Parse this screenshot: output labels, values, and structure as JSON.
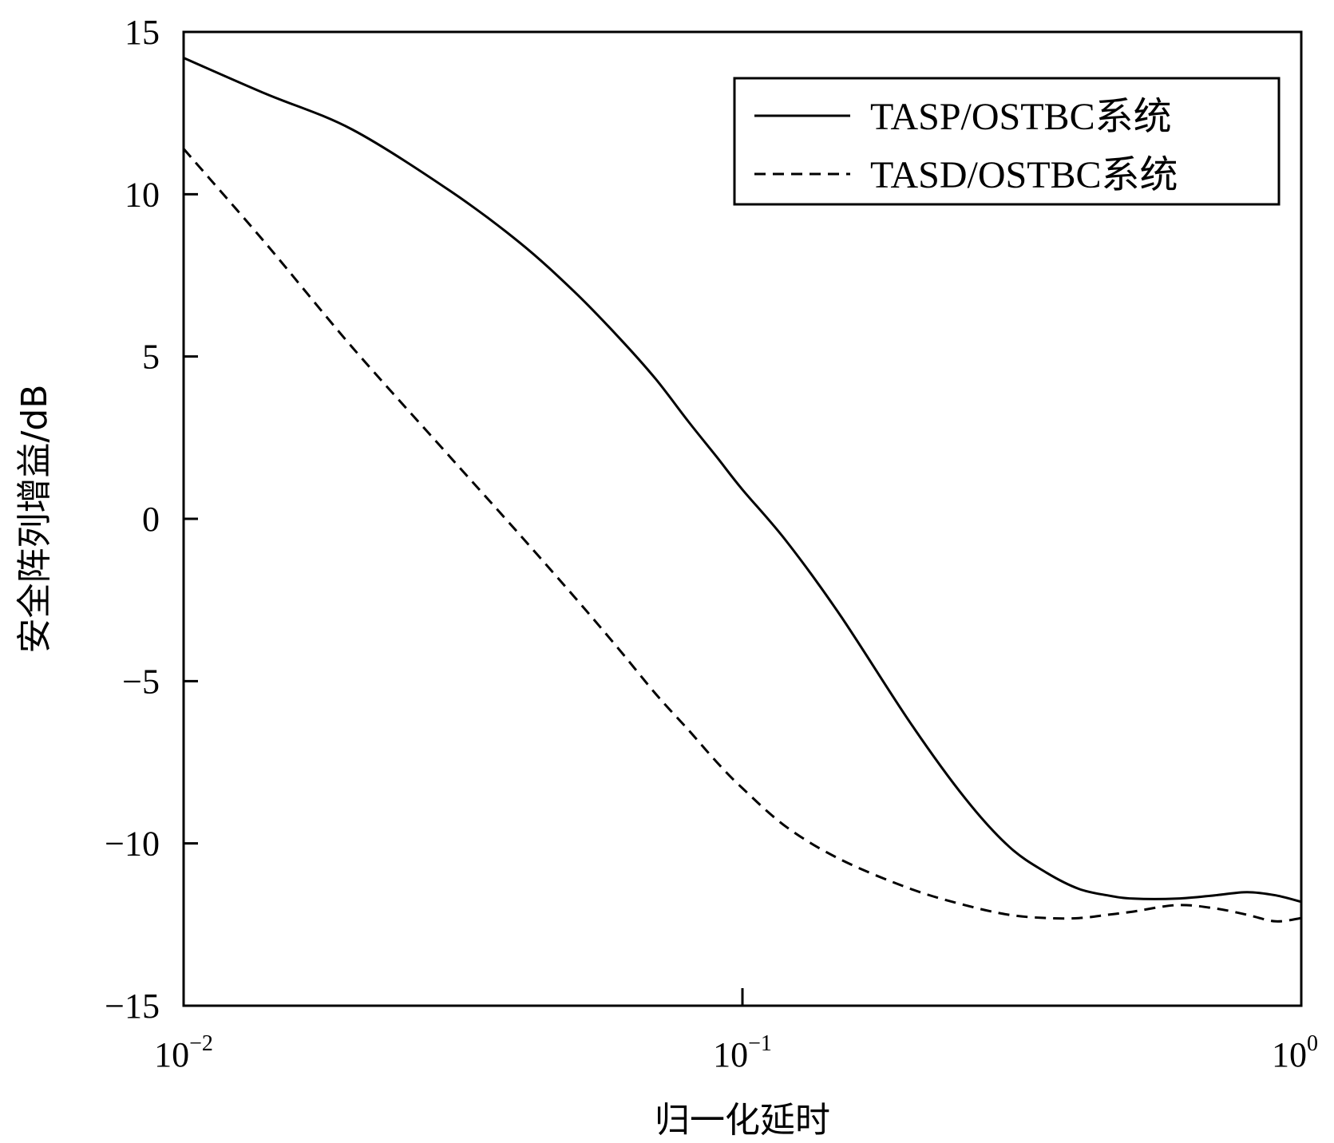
{
  "chart_data": {
    "type": "line",
    "xlabel": "归一化延时",
    "ylabel": "安全阵列增益/dB",
    "xscale": "log",
    "xlim": [
      0.01,
      1
    ],
    "ylim": [
      -15,
      15
    ],
    "xticks": [
      {
        "value": 0.01,
        "base": "10",
        "exp": "−2"
      },
      {
        "value": 0.1,
        "base": "10",
        "exp": "−1"
      },
      {
        "value": 1,
        "base": "10",
        "exp": "0"
      }
    ],
    "yticks": [
      {
        "value": 15,
        "label": "15"
      },
      {
        "value": 10,
        "label": "10"
      },
      {
        "value": 5,
        "label": "5"
      },
      {
        "value": 0,
        "label": "0"
      },
      {
        "value": -5,
        "label": "−5"
      },
      {
        "value": -10,
        "label": "−10"
      },
      {
        "value": -15,
        "label": "−15"
      }
    ],
    "legend_position": "top-right",
    "grid": false,
    "series": [
      {
        "name": "TASP/OSTBC系统",
        "style": "solid",
        "x": [
          0.01,
          0.014,
          0.02,
          0.03,
          0.04,
          0.05,
          0.06,
          0.07,
          0.08,
          0.09,
          0.1,
          0.12,
          0.15,
          0.2,
          0.25,
          0.3,
          0.35,
          0.4,
          0.45,
          0.5,
          0.6,
          0.7,
          0.8,
          0.9,
          1.0
        ],
        "y": [
          14.2,
          13.1,
          12.0,
          10.1,
          8.5,
          7.0,
          5.6,
          4.3,
          3.0,
          1.9,
          0.9,
          -0.7,
          -3.0,
          -6.3,
          -8.6,
          -10.1,
          -10.9,
          -11.4,
          -11.6,
          -11.7,
          -11.7,
          -11.6,
          -11.5,
          -11.6,
          -11.8
        ]
      },
      {
        "name": "TASD/OSTBC系统",
        "style": "dashed",
        "x": [
          0.01,
          0.014,
          0.02,
          0.03,
          0.04,
          0.05,
          0.06,
          0.07,
          0.08,
          0.09,
          0.1,
          0.12,
          0.15,
          0.2,
          0.25,
          0.3,
          0.35,
          0.4,
          0.45,
          0.5,
          0.6,
          0.7,
          0.8,
          0.9,
          1.0
        ],
        "y": [
          11.4,
          8.5,
          5.3,
          1.9,
          -0.5,
          -2.4,
          -4.0,
          -5.4,
          -6.5,
          -7.5,
          -8.3,
          -9.5,
          -10.5,
          -11.4,
          -11.9,
          -12.2,
          -12.3,
          -12.3,
          -12.2,
          -12.1,
          -11.9,
          -12.0,
          -12.2,
          -12.4,
          -12.3
        ]
      }
    ]
  }
}
